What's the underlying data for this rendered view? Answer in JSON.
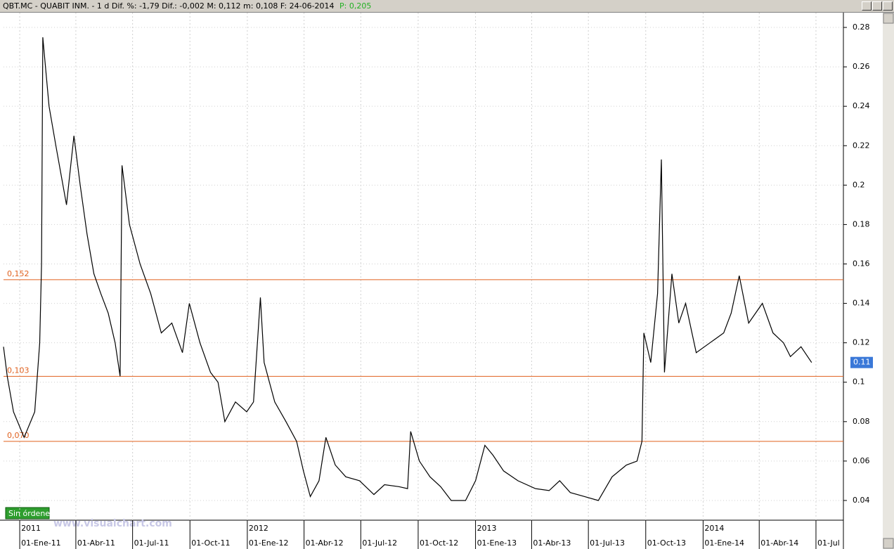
{
  "chart_data": {
    "type": "line",
    "title": "QBT.MC - QUABIT INM. - 1 d Dif. %: -1,79 Dif.: -0,002 M: 0,112 m: 0,108 F: 24-06-2014",
    "price_label": "P: 0,205",
    "badge": "Sin órdenes",
    "watermark": "www.visualchart.com",
    "xlim": [
      "2010-12-06",
      "2014-08-14"
    ],
    "ylim": [
      0.03,
      0.2875
    ],
    "yticks": [
      0.04,
      0.06,
      0.08,
      0.1,
      0.12,
      0.14,
      0.16,
      0.18,
      0.2,
      0.22,
      0.24,
      0.26,
      0.28
    ],
    "xticks": [
      {
        "value": "2011-01-01",
        "label": "01-Ene-11"
      },
      {
        "value": "2011-04-01",
        "label": "01-Abr-11"
      },
      {
        "value": "2011-07-01",
        "label": "01-Jul-11"
      },
      {
        "value": "2011-10-01",
        "label": "01-Oct-11"
      },
      {
        "value": "2012-01-01",
        "label": "01-Ene-12"
      },
      {
        "value": "2012-04-01",
        "label": "01-Abr-12"
      },
      {
        "value": "2012-07-01",
        "label": "01-Jul-12"
      },
      {
        "value": "2012-10-01",
        "label": "01-Oct-12"
      },
      {
        "value": "2013-01-01",
        "label": "01-Ene-13"
      },
      {
        "value": "2013-04-01",
        "label": "01-Abr-13"
      },
      {
        "value": "2013-07-01",
        "label": "01-Jul-13"
      },
      {
        "value": "2013-10-01",
        "label": "01-Oct-13"
      },
      {
        "value": "2014-01-01",
        "label": "01-Ene-14"
      },
      {
        "value": "2014-04-01",
        "label": "01-Abr-14"
      },
      {
        "value": "2014-07-01",
        "label": "01-Jul"
      }
    ],
    "year_ticks": [
      {
        "value": "2011-01-01",
        "label": "2011"
      },
      {
        "value": "2012-01-01",
        "label": "2012"
      },
      {
        "value": "2013-01-01",
        "label": "2013"
      },
      {
        "value": "2014-01-01",
        "label": "2014"
      }
    ],
    "grid": true,
    "levels": [
      {
        "value": 0.152,
        "label": "0,152"
      },
      {
        "value": 0.103,
        "label": "0,103"
      },
      {
        "value": 0.07,
        "label": "0,070"
      }
    ],
    "level_color": "#e0601e",
    "last_value": {
      "value": 0.11,
      "label": "0.11"
    },
    "last_value_color": "#3a78d8",
    "series": [
      {
        "name": "QBT.MC",
        "color": "#000000",
        "x": [
          "2010-12-06",
          "2010-12-12",
          "2010-12-22",
          "2011-01-08",
          "2011-01-25",
          "2011-02-02",
          "2011-02-05",
          "2011-02-07",
          "2011-02-17",
          "2011-02-28",
          "2011-03-17",
          "2011-03-29",
          "2011-04-08",
          "2011-04-19",
          "2011-04-30",
          "2011-05-11",
          "2011-05-23",
          "2011-06-03",
          "2011-06-11",
          "2011-06-14",
          "2011-06-26",
          "2011-07-13",
          "2011-07-30",
          "2011-08-16",
          "2011-09-02",
          "2011-09-19",
          "2011-09-30",
          "2011-10-17",
          "2011-11-03",
          "2011-11-15",
          "2011-11-26",
          "2011-12-13",
          "2011-12-31",
          "2012-01-11",
          "2012-01-22",
          "2012-01-28",
          "2012-02-14",
          "2012-03-03",
          "2012-03-20",
          "2012-03-31",
          "2012-04-11",
          "2012-04-25",
          "2012-05-06",
          "2012-05-21",
          "2012-06-07",
          "2012-06-29",
          "2012-07-22",
          "2012-08-08",
          "2012-08-31",
          "2012-09-14",
          "2012-09-19",
          "2012-10-03",
          "2012-10-20",
          "2012-11-06",
          "2012-11-23",
          "2012-12-16",
          "2013-01-01",
          "2013-01-16",
          "2013-01-29",
          "2013-02-15",
          "2013-03-10",
          "2013-04-07",
          "2013-04-29",
          "2013-05-16",
          "2013-06-02",
          "2013-06-25",
          "2013-07-17",
          "2013-08-08",
          "2013-08-31",
          "2013-09-17",
          "2013-09-25",
          "2013-09-28",
          "2013-10-09",
          "2013-10-20",
          "2013-10-26",
          "2013-10-31",
          "2013-11-12",
          "2013-11-23",
          "2013-12-04",
          "2013-12-21",
          "2014-01-12",
          "2014-02-03",
          "2014-02-15",
          "2014-02-28",
          "2014-03-15",
          "2014-04-06",
          "2014-04-23",
          "2014-05-10",
          "2014-05-21",
          "2014-06-07",
          "2014-06-24"
        ],
        "values": [
          0.118,
          0.103,
          0.085,
          0.072,
          0.085,
          0.12,
          0.16,
          0.275,
          0.24,
          0.22,
          0.19,
          0.225,
          0.2,
          0.175,
          0.155,
          0.145,
          0.135,
          0.12,
          0.103,
          0.21,
          0.18,
          0.16,
          0.145,
          0.125,
          0.13,
          0.115,
          0.14,
          0.12,
          0.105,
          0.1,
          0.08,
          0.09,
          0.085,
          0.09,
          0.143,
          0.11,
          0.09,
          0.08,
          0.07,
          0.055,
          0.042,
          0.05,
          0.072,
          0.058,
          0.052,
          0.05,
          0.043,
          0.048,
          0.047,
          0.046,
          0.075,
          0.06,
          0.052,
          0.047,
          0.04,
          0.04,
          0.05,
          0.068,
          0.063,
          0.055,
          0.05,
          0.046,
          0.045,
          0.05,
          0.044,
          0.042,
          0.04,
          0.052,
          0.058,
          0.06,
          0.07,
          0.125,
          0.11,
          0.145,
          0.213,
          0.105,
          0.155,
          0.13,
          0.14,
          0.115,
          0.12,
          0.125,
          0.135,
          0.154,
          0.13,
          0.14,
          0.125,
          0.12,
          0.113,
          0.118,
          0.11
        ]
      }
    ]
  }
}
